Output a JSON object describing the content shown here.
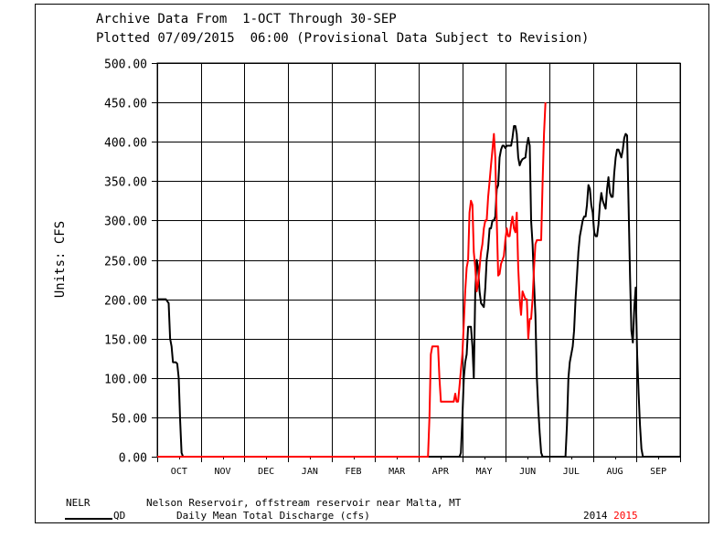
{
  "header": {
    "line1": "Archive Data From  1-OCT Through 30-SEP",
    "line2": "Plotted 07/09/2015  06:00 (Provisional Data Subject to Revision)"
  },
  "footer": {
    "station_id": "NELR",
    "station_name": "Nelson Reservoir, offstream reservoir near Malta, MT",
    "param_code": "QD",
    "param_desc": "Daily Mean Total Discharge (cfs)",
    "year_a": "2014",
    "year_b": "2015"
  },
  "colors": {
    "series_2014": "#000000",
    "series_2015": "#ff0000",
    "grid": "#000000"
  },
  "chart_data": {
    "type": "line",
    "ylabel": "Units: CFS",
    "ylim": [
      0,
      500
    ],
    "xlim": [
      0,
      365
    ],
    "yticks": [
      "0.00",
      "50.00",
      "100.00",
      "150.00",
      "200.00",
      "250.00",
      "300.00",
      "350.00",
      "400.00",
      "450.00",
      "500.00"
    ],
    "categories": [
      "OCT",
      "NOV",
      "DEC",
      "JAN",
      "FEB",
      "MAR",
      "APR",
      "MAY",
      "JUN",
      "JUL",
      "AUG",
      "SEP"
    ],
    "grid": true,
    "series": [
      {
        "name": "2014",
        "color": "#000000",
        "points": [
          [
            0,
            200
          ],
          [
            6,
            200
          ],
          [
            8,
            195
          ],
          [
            9,
            150
          ],
          [
            10,
            140
          ],
          [
            11,
            120
          ],
          [
            13,
            120
          ],
          [
            14,
            118
          ],
          [
            15,
            100
          ],
          [
            16,
            45
          ],
          [
            17,
            5
          ],
          [
            18,
            0
          ],
          [
            30,
            0
          ],
          [
            60,
            0
          ],
          [
            90,
            0
          ],
          [
            120,
            0
          ],
          [
            150,
            0
          ],
          [
            181,
            0
          ],
          [
            200,
            0
          ],
          [
            211,
            0
          ],
          [
            212,
            5
          ],
          [
            213,
            50
          ],
          [
            214,
            100
          ],
          [
            215,
            120
          ],
          [
            216,
            130
          ],
          [
            217,
            165
          ],
          [
            219,
            165
          ],
          [
            220,
            140
          ],
          [
            221,
            100
          ],
          [
            222,
            210
          ],
          [
            223,
            250
          ],
          [
            224,
            240
          ],
          [
            225,
            210
          ],
          [
            226,
            195
          ],
          [
            228,
            190
          ],
          [
            229,
            215
          ],
          [
            230,
            250
          ],
          [
            231,
            265
          ],
          [
            232,
            290
          ],
          [
            233,
            290
          ],
          [
            234,
            300
          ],
          [
            235,
            300
          ],
          [
            236,
            305
          ],
          [
            237,
            340
          ],
          [
            238,
            345
          ],
          [
            239,
            380
          ],
          [
            240,
            390
          ],
          [
            241,
            395
          ],
          [
            242,
            395
          ],
          [
            243,
            392
          ],
          [
            244,
            395
          ],
          [
            245,
            395
          ],
          [
            246,
            395
          ],
          [
            247,
            395
          ],
          [
            248,
            405
          ],
          [
            249,
            420
          ],
          [
            250,
            420
          ],
          [
            251,
            410
          ],
          [
            252,
            380
          ],
          [
            253,
            370
          ],
          [
            254,
            375
          ],
          [
            255,
            378
          ],
          [
            257,
            380
          ],
          [
            258,
            395
          ],
          [
            259,
            405
          ],
          [
            260,
            395
          ],
          [
            261,
            300
          ],
          [
            262,
            270
          ],
          [
            263,
            220
          ],
          [
            264,
            180
          ],
          [
            265,
            100
          ],
          [
            266,
            60
          ],
          [
            267,
            30
          ],
          [
            268,
            5
          ],
          [
            269,
            0
          ],
          [
            280,
            0
          ],
          [
            285,
            0
          ],
          [
            286,
            40
          ],
          [
            287,
            100
          ],
          [
            288,
            120
          ],
          [
            289,
            130
          ],
          [
            290,
            140
          ],
          [
            291,
            160
          ],
          [
            292,
            200
          ],
          [
            293,
            230
          ],
          [
            294,
            260
          ],
          [
            295,
            280
          ],
          [
            296,
            290
          ],
          [
            297,
            300
          ],
          [
            298,
            305
          ],
          [
            299,
            305
          ],
          [
            300,
            320
          ],
          [
            301,
            345
          ],
          [
            302,
            340
          ],
          [
            303,
            320
          ],
          [
            304,
            310
          ],
          [
            305,
            285
          ],
          [
            306,
            280
          ],
          [
            307,
            280
          ],
          [
            308,
            295
          ],
          [
            309,
            320
          ],
          [
            310,
            335
          ],
          [
            311,
            325
          ],
          [
            312,
            320
          ],
          [
            313,
            315
          ],
          [
            314,
            340
          ],
          [
            315,
            355
          ],
          [
            316,
            335
          ],
          [
            317,
            330
          ],
          [
            318,
            330
          ],
          [
            319,
            360
          ],
          [
            320,
            380
          ],
          [
            321,
            390
          ],
          [
            322,
            390
          ],
          [
            323,
            385
          ],
          [
            324,
            380
          ],
          [
            325,
            390
          ],
          [
            326,
            405
          ],
          [
            327,
            410
          ],
          [
            328,
            408
          ],
          [
            329,
            320
          ],
          [
            330,
            230
          ],
          [
            331,
            160
          ],
          [
            332,
            145
          ],
          [
            333,
            190
          ],
          [
            334,
            215
          ],
          [
            335,
            130
          ],
          [
            336,
            80
          ],
          [
            337,
            40
          ],
          [
            338,
            10
          ],
          [
            339,
            0
          ],
          [
            350,
            0
          ],
          [
            365,
            0
          ]
        ]
      },
      {
        "name": "2015",
        "color": "#ff0000",
        "points": [
          [
            0,
            0
          ],
          [
            30,
            0
          ],
          [
            60,
            0
          ],
          [
            90,
            0
          ],
          [
            120,
            0
          ],
          [
            150,
            0
          ],
          [
            180,
            0
          ],
          [
            189,
            0
          ],
          [
            190,
            50
          ],
          [
            191,
            130
          ],
          [
            192,
            140
          ],
          [
            196,
            140
          ],
          [
            197,
            100
          ],
          [
            198,
            70
          ],
          [
            200,
            70
          ],
          [
            204,
            70
          ],
          [
            207,
            70
          ],
          [
            208,
            80
          ],
          [
            209,
            70
          ],
          [
            210,
            70
          ],
          [
            211,
            90
          ],
          [
            212,
            110
          ],
          [
            213,
            130
          ],
          [
            214,
            170
          ],
          [
            215,
            210
          ],
          [
            216,
            240
          ],
          [
            217,
            250
          ],
          [
            218,
            310
          ],
          [
            219,
            325
          ],
          [
            220,
            320
          ],
          [
            221,
            260
          ],
          [
            222,
            240
          ],
          [
            223,
            210
          ],
          [
            224,
            220
          ],
          [
            225,
            240
          ],
          [
            226,
            260
          ],
          [
            227,
            270
          ],
          [
            228,
            290
          ],
          [
            229,
            300
          ],
          [
            230,
            300
          ],
          [
            231,
            330
          ],
          [
            232,
            350
          ],
          [
            233,
            370
          ],
          [
            234,
            390
          ],
          [
            235,
            410
          ],
          [
            236,
            380
          ],
          [
            237,
            300
          ],
          [
            238,
            230
          ],
          [
            239,
            232
          ],
          [
            240,
            245
          ],
          [
            241,
            250
          ],
          [
            242,
            255
          ],
          [
            243,
            275
          ],
          [
            244,
            290
          ],
          [
            245,
            280
          ],
          [
            246,
            280
          ],
          [
            247,
            295
          ],
          [
            248,
            305
          ],
          [
            249,
            290
          ],
          [
            250,
            285
          ],
          [
            251,
            310
          ],
          [
            252,
            240
          ],
          [
            253,
            200
          ],
          [
            254,
            180
          ],
          [
            255,
            210
          ],
          [
            256,
            205
          ],
          [
            257,
            200
          ],
          [
            258,
            200
          ],
          [
            259,
            150
          ],
          [
            260,
            175
          ],
          [
            261,
            175
          ],
          [
            262,
            200
          ],
          [
            263,
            240
          ],
          [
            264,
            270
          ],
          [
            265,
            275
          ],
          [
            266,
            275
          ],
          [
            267,
            275
          ],
          [
            268,
            275
          ],
          [
            269,
            350
          ],
          [
            270,
            410
          ],
          [
            271,
            450
          ]
        ]
      }
    ]
  }
}
